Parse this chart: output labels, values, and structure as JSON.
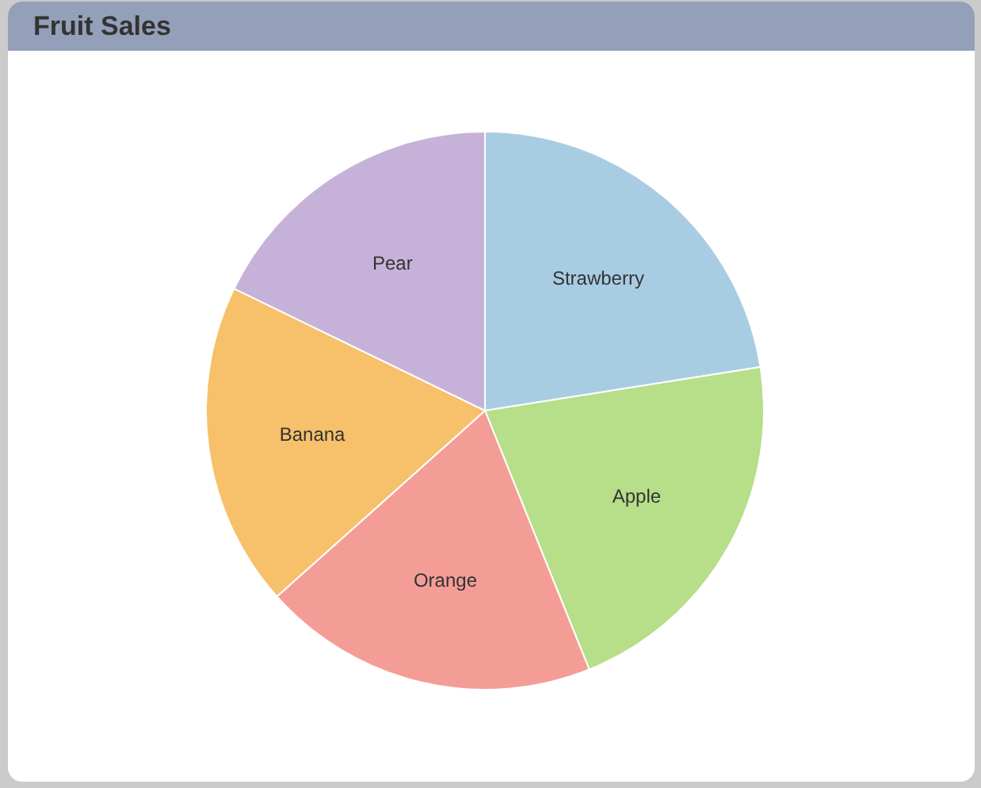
{
  "chart_data": {
    "type": "pie",
    "title": "Fruit Sales",
    "categories": [
      "Strawberry",
      "Apple",
      "Orange",
      "Banana",
      "Pear"
    ],
    "values": [
      22.5,
      21.4,
      19.5,
      18.8,
      17.8
    ],
    "colors": [
      "#a8cde2",
      "#b7de88",
      "#f49d97",
      "#f7c06a",
      "#c6b2d8"
    ]
  }
}
